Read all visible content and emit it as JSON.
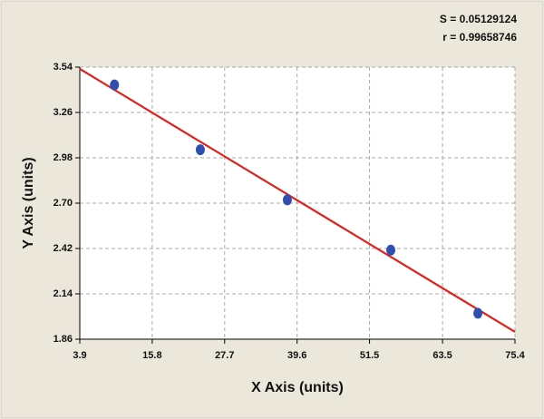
{
  "chart_data": {
    "type": "scatter",
    "annotations": [
      "S = 0.05129124",
      "r = 0.99658746"
    ],
    "x_label": "X Axis (units)",
    "y_label": "Y Axis (units)",
    "xlim": [
      3.9,
      75.4
    ],
    "ylim": [
      1.86,
      3.54
    ],
    "xticks": [
      3.9,
      15.8,
      27.7,
      39.6,
      51.5,
      63.5,
      75.4
    ],
    "yticks": [
      1.86,
      2.14,
      2.42,
      {
        "value": 2.7,
        "label": "2.70"
      },
      2.98,
      3.26,
      3.54
    ],
    "grid": true,
    "points": {
      "color": "#2f4fb0",
      "x": [
        9.6,
        23.7,
        38.0,
        55.0,
        69.3
      ],
      "values": [
        3.43,
        3.03,
        2.72,
        2.41,
        2.02
      ]
    },
    "fit_line": {
      "color": "#e0201b",
      "x": [
        3.9,
        75.4
      ],
      "values": [
        3.529,
        1.905
      ]
    }
  }
}
